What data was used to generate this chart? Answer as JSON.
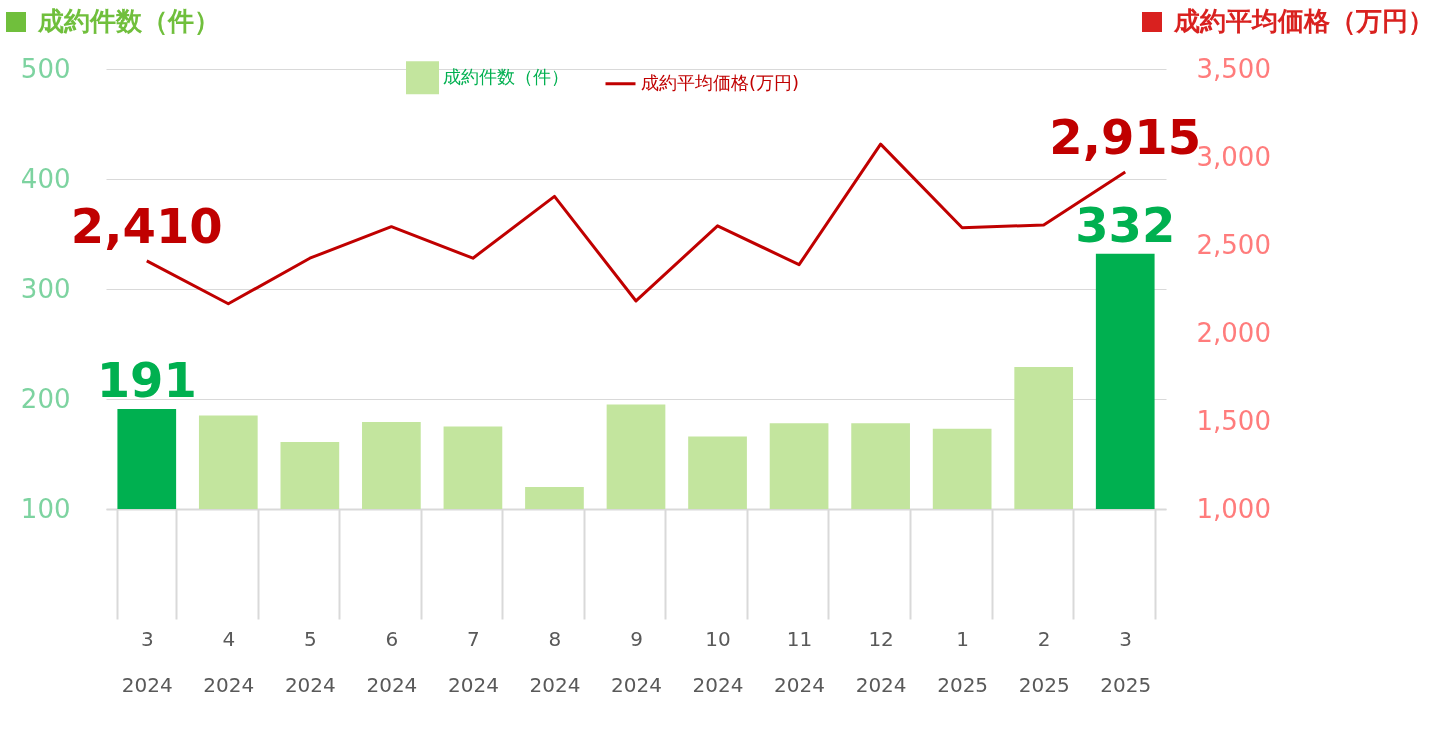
{
  "chart_data": {
    "type": "bar",
    "ylabel": "成約件数（件）",
    "y2label": "成約平均価格（万円）",
    "categories": [
      "3\n2024",
      "4\n2024",
      "5\n2024",
      "6\n2024",
      "7\n2024",
      "8\n2024",
      "9\n2024",
      "10\n2024",
      "11\n2024",
      "12\n2024",
      "1\n2025",
      "2\n2025",
      "3\n2025"
    ],
    "series": [
      {
        "name": "成約件数（件）",
        "color": "#c3e59e",
        "colors": [
          "#00b050",
          "#c3e59e",
          "#c3e59e",
          "#c3e59e",
          "#c3e59e",
          "#c3e59e",
          "#c3e59e",
          "#c3e59e",
          "#c3e59e",
          "#c3e59e",
          "#c3e59e",
          "#c3e59e",
          "#00b050"
        ],
        "values": [
          191,
          185,
          161,
          179,
          175,
          120,
          195,
          166,
          178,
          178,
          173,
          229,
          332
        ],
        "value_labels": [
          "191",
          null,
          null,
          null,
          null,
          null,
          null,
          null,
          null,
          null,
          null,
          null,
          "332"
        ]
      },
      {
        "name": "成約平均価格(万円)",
        "type": "line",
        "axis": "y2",
        "color": "#c00000",
        "values": [
          2410,
          2166,
          2425,
          2604,
          2425,
          2776,
          2182,
          2609,
          2388,
          3073,
          2598,
          2614,
          2915
        ],
        "value_labels": [
          "2,410",
          null,
          null,
          null,
          null,
          null,
          null,
          null,
          null,
          null,
          null,
          null,
          "2,915"
        ]
      }
    ],
    "ylim": [
      100,
      500
    ],
    "yticks": [
      100,
      200,
      300,
      400,
      500
    ],
    "y2lim": [
      1000,
      3500
    ],
    "y2ticks": [
      {
        "value": 1000,
        "label": "1,000"
      },
      {
        "value": 1500,
        "label": "1,500"
      },
      {
        "value": 2000,
        "label": "2,000"
      },
      {
        "value": 2500,
        "label": "2,500"
      },
      {
        "value": 3000,
        "label": "3,000"
      },
      {
        "value": 3500,
        "label": "3,500"
      }
    ],
    "grid": "y",
    "legend": "top"
  }
}
